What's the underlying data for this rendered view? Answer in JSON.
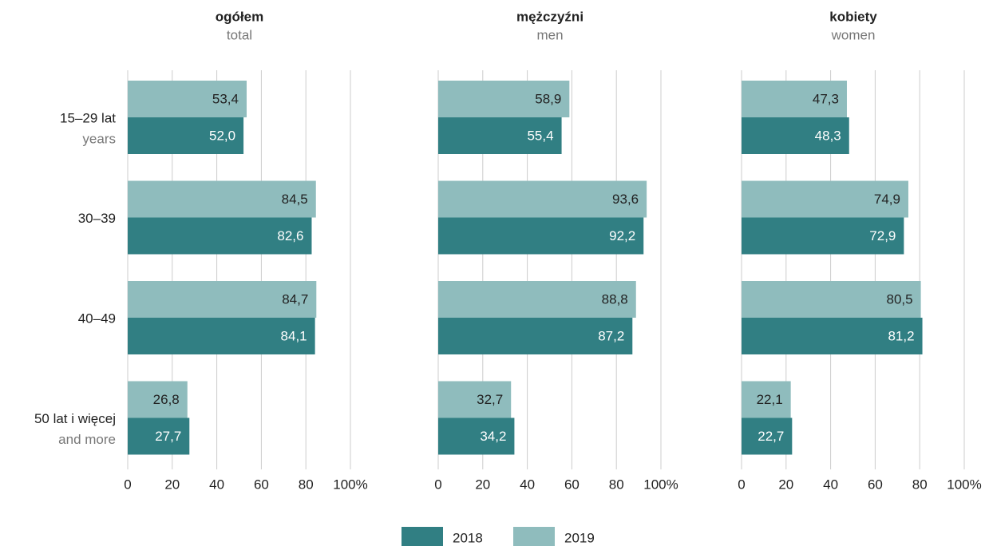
{
  "chart_data": {
    "type": "bar",
    "orientation": "horizontal",
    "categories": [
      "15–29 lat",
      "30–39",
      "40–49",
      "50 lat i więcej"
    ],
    "category_sublabels": [
      "years",
      null,
      null,
      "and more"
    ],
    "xlim": [
      0,
      100
    ],
    "xticks": [
      0,
      20,
      40,
      60,
      80,
      {
        "value": 100,
        "label": "100%"
      }
    ],
    "grid": true,
    "legend": [
      {
        "name": "2018",
        "color": "#317f83"
      },
      {
        "name": "2019",
        "color": "#8fbcbd"
      }
    ],
    "panels": [
      {
        "title": "ogółem",
        "subtitle": "total",
        "series": [
          {
            "values": [
              52.0,
              82.6,
              84.1,
              27.7
            ],
            "value_labels": [
              "52,0",
              "82,6",
              "84,1",
              "27,7"
            ]
          },
          {
            "values": [
              53.4,
              84.5,
              84.7,
              26.8
            ],
            "value_labels": [
              "53,4",
              "84,5",
              "84,7",
              "26,8"
            ]
          }
        ]
      },
      {
        "title": "mężczyźni",
        "subtitle": "men",
        "series": [
          {
            "values": [
              55.4,
              92.2,
              87.2,
              34.2
            ],
            "value_labels": [
              "55,4",
              "92,2",
              "87,2",
              "34,2"
            ]
          },
          {
            "values": [
              58.9,
              93.6,
              88.8,
              32.7
            ],
            "value_labels": [
              "58,9",
              "93,6",
              "88,8",
              "32,7"
            ]
          }
        ]
      },
      {
        "title": "kobiety",
        "subtitle": "women",
        "series": [
          {
            "values": [
              48.3,
              72.9,
              81.2,
              22.7
            ],
            "value_labels": [
              "48,3",
              "72,9",
              "81,2",
              "22,7"
            ]
          },
          {
            "values": [
              47.3,
              74.9,
              80.5,
              22.1
            ],
            "value_labels": [
              "47,3",
              "74,9",
              "80,5",
              "22,1"
            ]
          }
        ]
      }
    ]
  }
}
